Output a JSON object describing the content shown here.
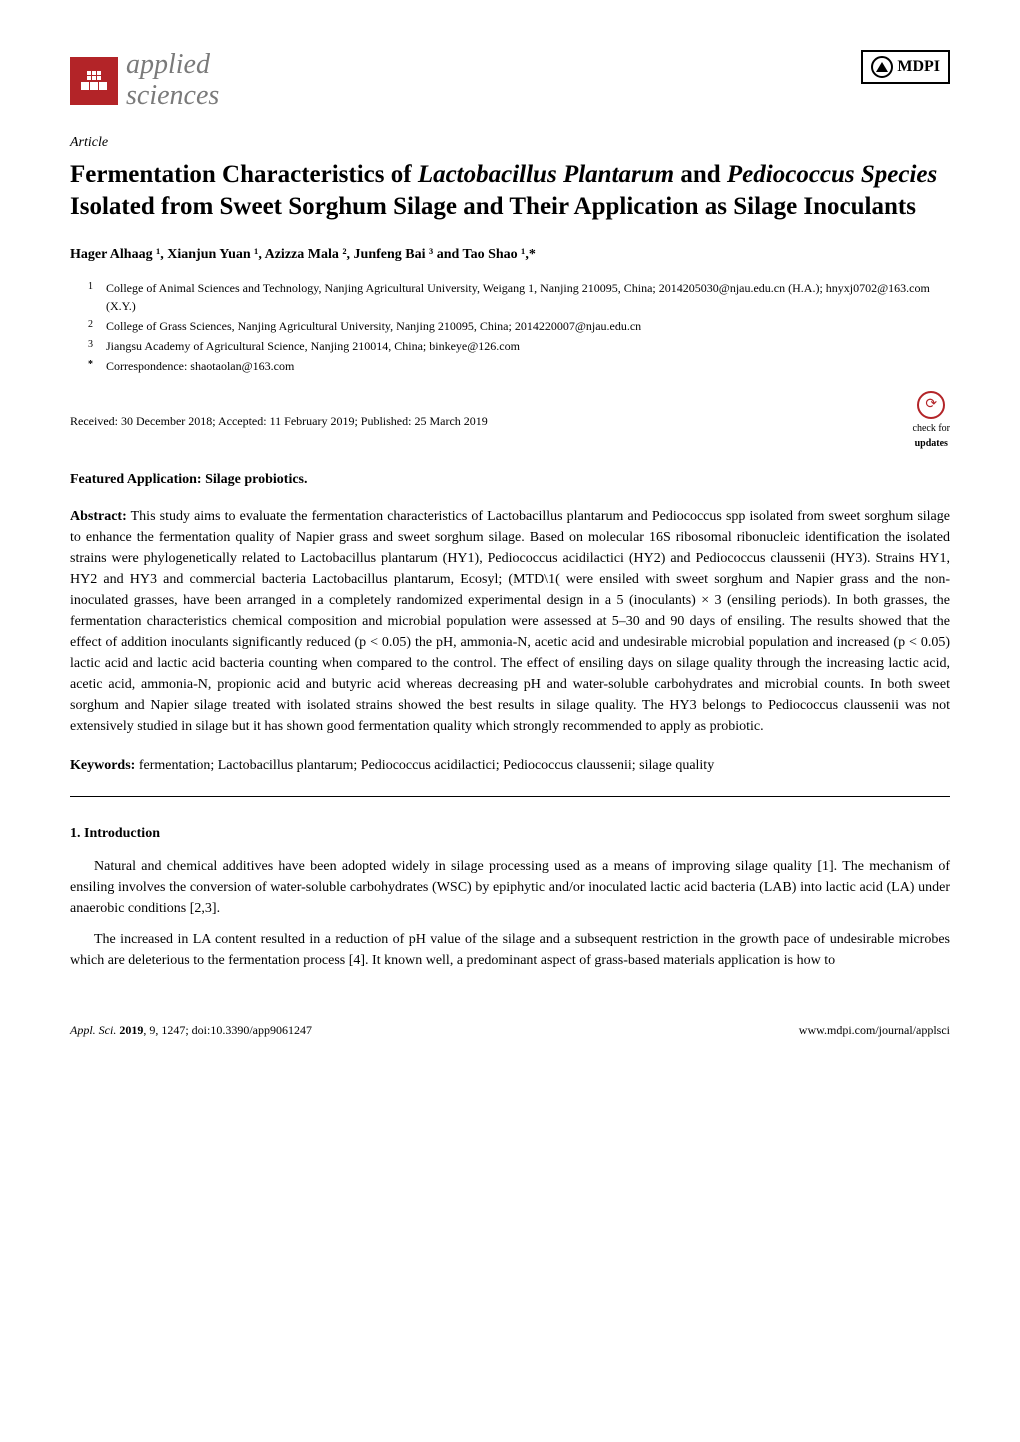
{
  "colors": {
    "brand_red": "#b32428",
    "text_black": "#000000",
    "background": "#ffffff",
    "journal_gray": "#7a7a7a",
    "link_blue": "#0066cc"
  },
  "header": {
    "journal_name_line1": "applied",
    "journal_name_line2": "sciences",
    "publisher": "MDPI"
  },
  "article_type": "Article",
  "title_parts": {
    "pre1": "Fermentation Characteristics of ",
    "sp1": "Lactobacillus Plantarum",
    "mid1": " and ",
    "sp2": "Pediococcus Species",
    "post1": " Isolated from Sweet Sorghum Silage and Their Application as Silage Inoculants"
  },
  "authors": "Hager Alhaag ¹, Xianjun Yuan ¹, Azizza Mala ², Junfeng Bai ³ and Tao Shao ¹,*",
  "affiliations": [
    {
      "num": "1",
      "text": "College of Animal Sciences and Technology, Nanjing Agricultural University, Weigang 1, Nanjing 210095, China; 2014205030@njau.edu.cn (H.A.); hnyxj0702@163.com (X.Y.)"
    },
    {
      "num": "2",
      "text": "College of Grass Sciences, Nanjing Agricultural University, Nanjing 210095, China; 2014220007@njau.edu.cn"
    },
    {
      "num": "3",
      "text": "Jiangsu Academy of Agricultural Science, Nanjing 210014, China; binkeye@126.com"
    },
    {
      "num": "*",
      "text": "Correspondence: shaotaolan@163.com"
    }
  ],
  "dates": "Received: 30 December 2018; Accepted: 11 February 2019; Published: 25 March 2019",
  "updates_badge": {
    "line1": "check for",
    "line2": "updates"
  },
  "featured": "Featured Application: Silage probiotics.",
  "abstract": {
    "label": "Abstract:",
    "text": " This study aims to evaluate the fermentation characteristics of Lactobacillus plantarum and Pediococcus spp isolated from sweet sorghum silage to enhance the fermentation quality of Napier grass and sweet sorghum silage. Based on molecular 16S ribosomal ribonucleic identification the isolated strains were phylogenetically related to Lactobacillus plantarum (HY1), Pediococcus acidilactici (HY2) and Pediococcus claussenii (HY3). Strains HY1, HY2 and HY3 and commercial bacteria Lactobacillus plantarum, Ecosyl; (MTD\\1( were ensiled with sweet sorghum and Napier grass and the non-inoculated grasses, have been arranged in a completely randomized experimental design in a 5 (inoculants) × 3 (ensiling periods). In both grasses, the fermentation characteristics chemical composition and microbial population were assessed at 5–30 and 90 days of ensiling. The results showed that the effect of addition inoculants significantly reduced (p < 0.05) the pH, ammonia-N, acetic acid and undesirable microbial population and increased (p < 0.05) lactic acid and lactic acid bacteria counting when compared to the control. The effect of ensiling days on silage quality through the increasing lactic acid, acetic acid, ammonia-N, propionic acid and butyric acid whereas decreasing pH and water-soluble carbohydrates and microbial counts. In both sweet sorghum and Napier silage treated with isolated strains showed the best results in silage quality. The HY3 belongs to Pediococcus claussenii was not extensively studied in silage but it has shown good fermentation quality which strongly recommended to apply as probiotic."
  },
  "keywords": {
    "label": "Keywords:",
    "text": " fermentation; Lactobacillus plantarum; Pediococcus acidilactici; Pediococcus claussenii; silage quality"
  },
  "section1": {
    "heading": "1. Introduction",
    "para1": "Natural and chemical additives have been adopted widely in silage processing used as a means of improving silage quality [1]. The mechanism of ensiling involves the conversion of water-soluble carbohydrates (WSC) by epiphytic and/or inoculated lactic acid bacteria (LAB) into lactic acid (LA) under anaerobic conditions [2,3].",
    "para2": "The increased in LA content resulted in a reduction of pH value of the silage and a subsequent restriction in the growth pace of undesirable microbes which are deleterious to the fermentation process [4]. It known well, a predominant aspect of grass-based materials application is how to"
  },
  "footer": {
    "left_italic": "Appl. Sci.",
    "left_bold": " 2019",
    "left_rest": ", 9, 1247; doi:10.3390/app9061247",
    "right": "www.mdpi.com/journal/applsci"
  },
  "typography": {
    "title_fontsize": 25,
    "body_fontsize": 14,
    "affiliation_fontsize": 12,
    "footer_fontsize": 12,
    "journal_name_fontsize": 28
  }
}
